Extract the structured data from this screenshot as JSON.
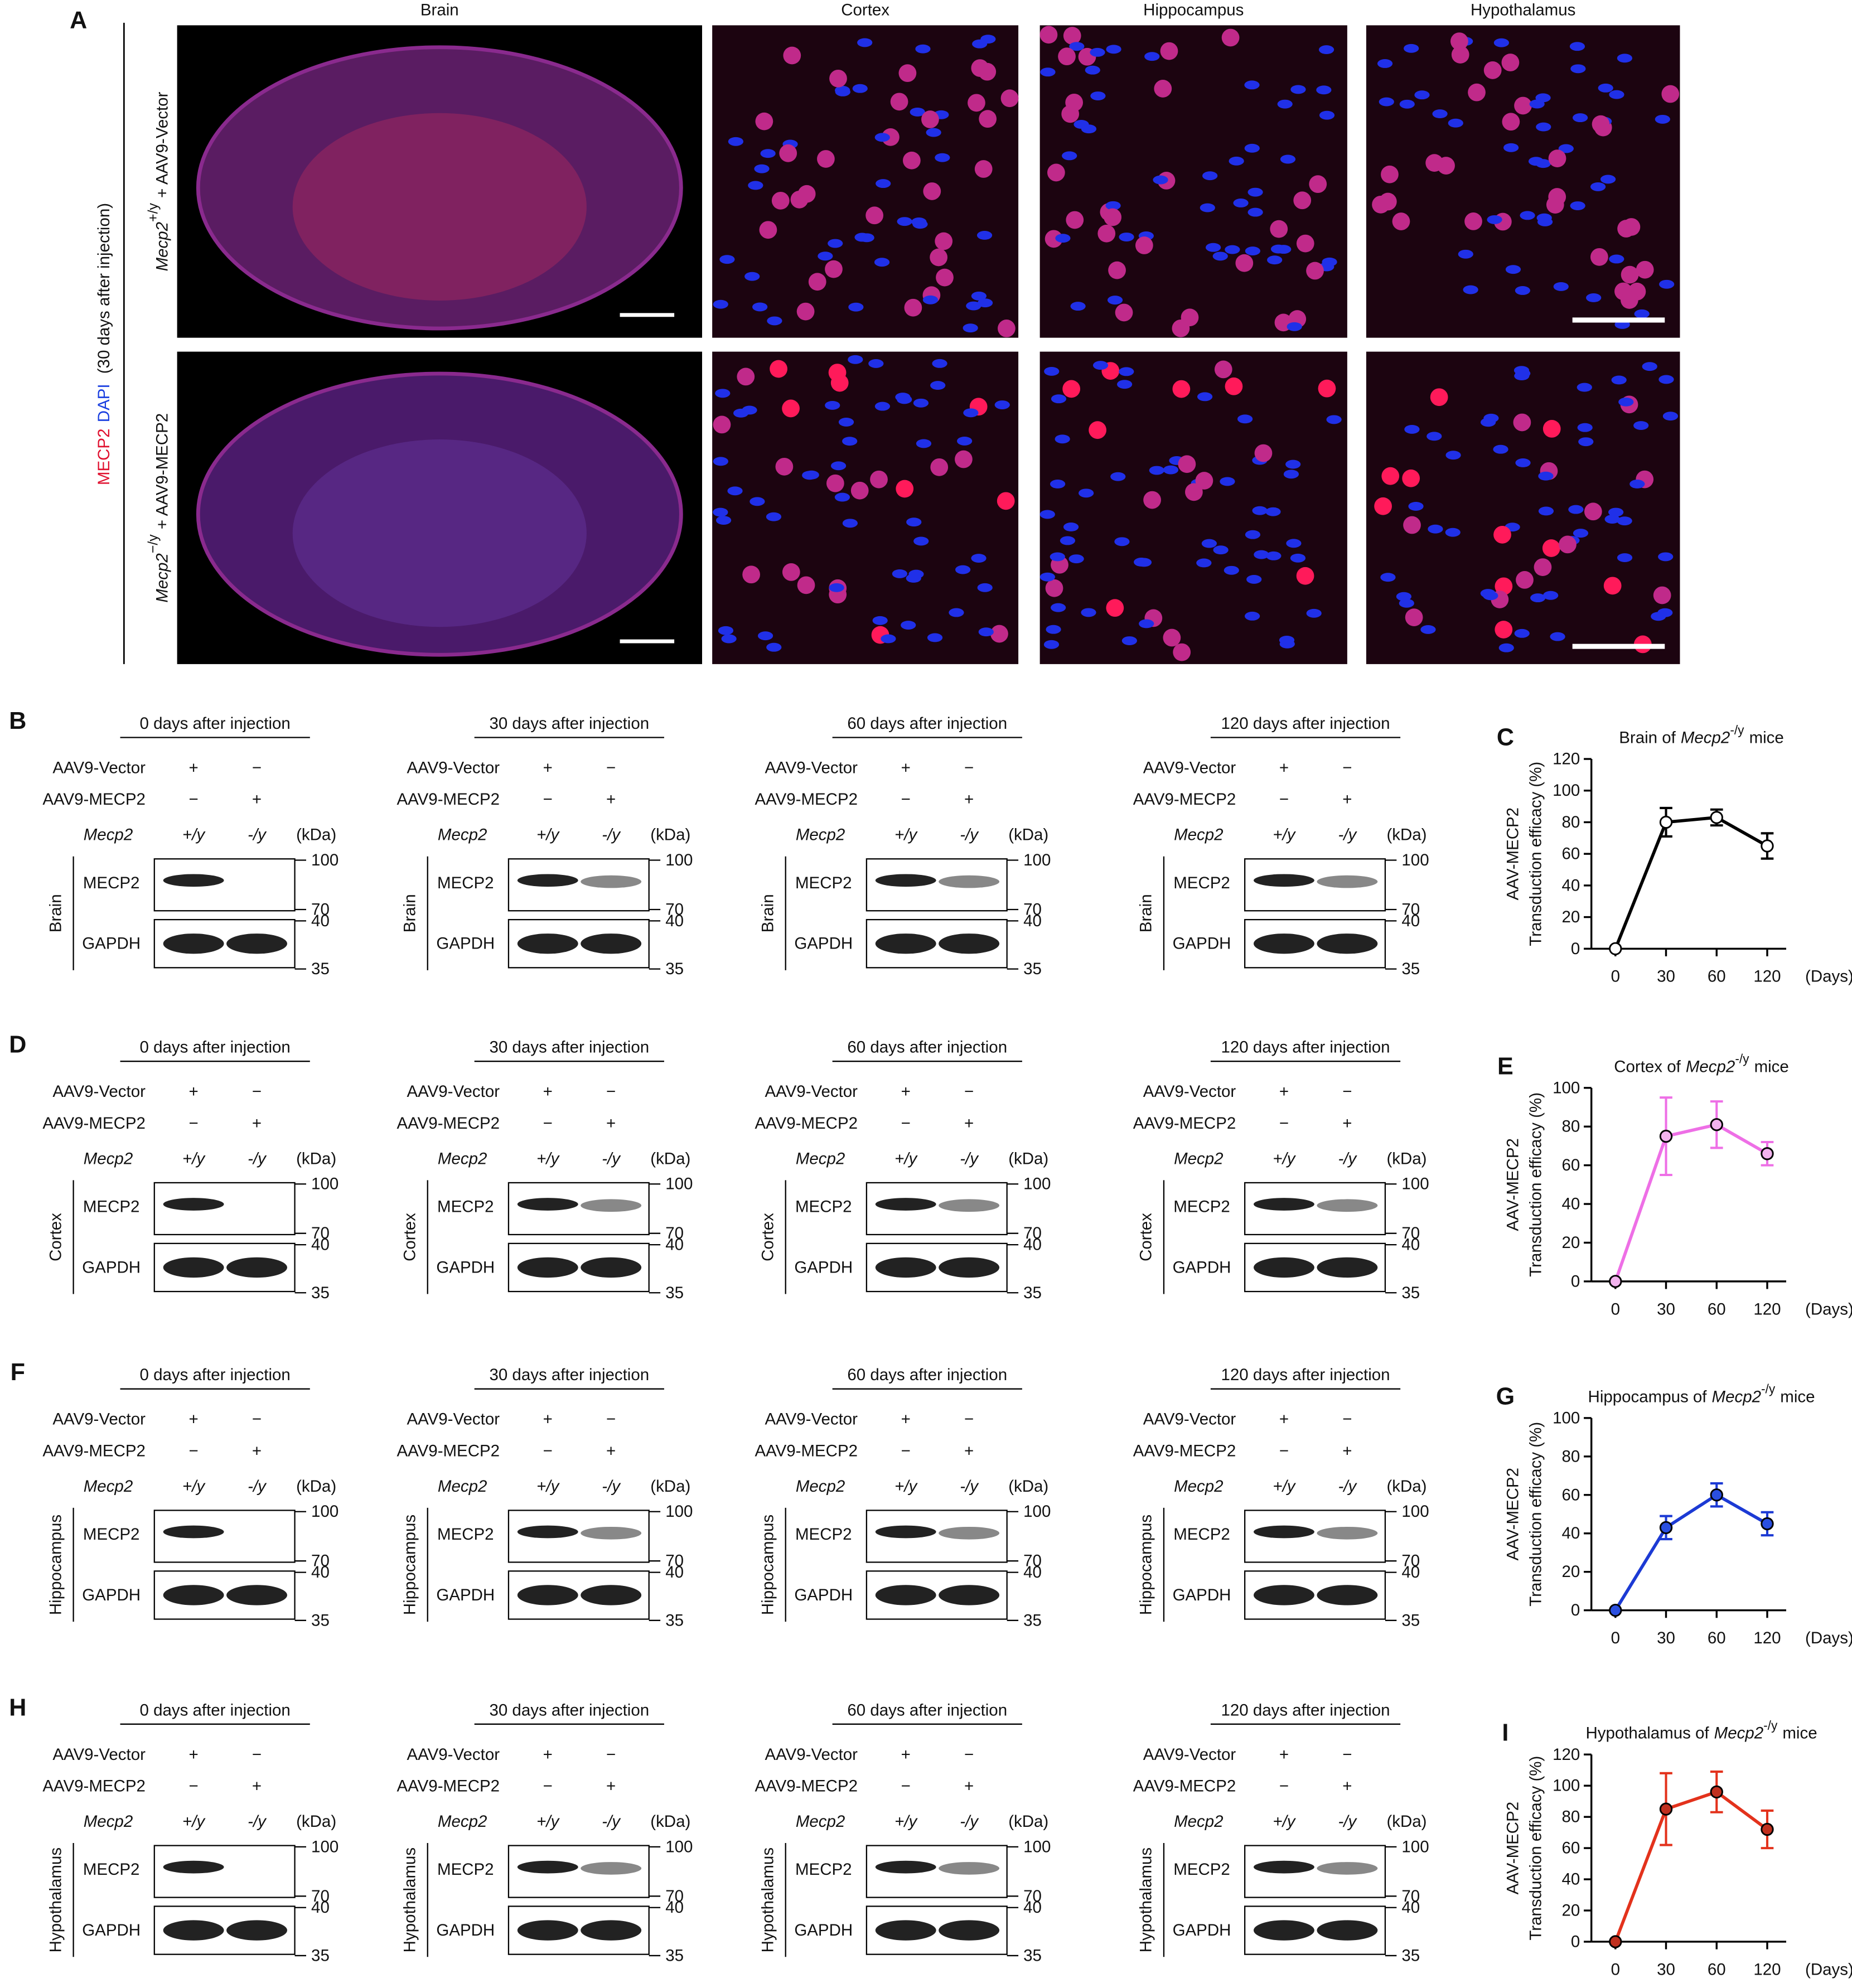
{
  "panel_a": {
    "label": "A",
    "columns": [
      "Brain",
      "Cortex",
      "Hippocampus",
      "Hypothalamus"
    ],
    "stain_1": "MECP2",
    "stain_2": "DAPI",
    "condition": "(30 days after injection)",
    "rows": [
      {
        "gene": "Mecp2",
        "genotype": "+/y",
        "treatment": "+ AAV9-Vector"
      },
      {
        "gene": "Mecp2",
        "genotype": "−/y",
        "treatment": "+ AAV9-MECP2"
      }
    ]
  },
  "blot_labels": {
    "vector": "AAV9-Vector",
    "mecp2_virus": "AAV9-MECP2",
    "plus": "+",
    "minus": "−",
    "gene": "Mecp2",
    "wt": "+/y",
    "ko": "-/y",
    "unit": "(kDa)",
    "target": "MECP2",
    "control": "GAPDH",
    "markers": [
      100,
      70,
      40,
      35
    ]
  },
  "blot_rows": [
    {
      "label": "B",
      "region": "Brain",
      "timepoints": [
        "0 days after injection",
        "30 days after injection",
        "60 days after injection",
        "120 days after injection"
      ]
    },
    {
      "label": "D",
      "region": "Cortex",
      "timepoints": [
        "0 days after injection",
        "30 days after injection",
        "60 days after injection",
        "120 days after injection"
      ]
    },
    {
      "label": "F",
      "region": "Hippocampus",
      "timepoints": [
        "0 days after injection",
        "30 days after injection",
        "60 days after injection",
        "120 days after injection"
      ]
    },
    {
      "label": "H",
      "region": "Hypothalamus",
      "timepoints": [
        "0 days after injection",
        "30 days after injection",
        "60 days after injection",
        "120 days after injection"
      ]
    }
  ],
  "chart_data": [
    {
      "type": "line",
      "label": "C",
      "title_prefix": "Brain of",
      "title_gene": "Mecp2",
      "title_superscript": "-/y",
      "title_suffix": "mice",
      "y_label": [
        "AAV-MECP2",
        "Transduction efficacy (%)"
      ],
      "x_label": "(Days)",
      "categories": [
        "0",
        "30",
        "60",
        "120"
      ],
      "values": [
        0,
        80,
        83,
        65
      ],
      "errors": [
        0,
        9,
        5,
        8
      ],
      "color": "#000000",
      "marker_color": "#ffffff",
      "ylim": [
        0,
        120
      ],
      "yticks": [
        0,
        20,
        40,
        60,
        80,
        100,
        120
      ]
    },
    {
      "type": "line",
      "label": "E",
      "title_prefix": "Cortex of",
      "title_gene": "Mecp2",
      "title_superscript": "-/y",
      "title_suffix": "mice",
      "y_label": [
        "AAV-MECP2",
        "Transduction efficacy (%)"
      ],
      "x_label": "(Days)",
      "categories": [
        "0",
        "30",
        "60",
        "120"
      ],
      "values": [
        0,
        75,
        81,
        66
      ],
      "errors": [
        0,
        20,
        12,
        6
      ],
      "color": "#ee6fe6",
      "marker_color": "#f2b3ee",
      "ylim": [
        0,
        100
      ],
      "yticks": [
        0,
        20,
        40,
        60,
        80,
        100
      ]
    },
    {
      "type": "line",
      "label": "G",
      "title_prefix": "Hippocampus of",
      "title_gene": "Mecp2",
      "title_superscript": "-/y",
      "title_suffix": "mice",
      "y_label": [
        "AAV-MECP2",
        "Transduction efficacy (%)"
      ],
      "x_label": "(Days)",
      "categories": [
        "0",
        "30",
        "60",
        "120"
      ],
      "values": [
        0,
        43,
        60,
        45
      ],
      "errors": [
        0,
        6,
        6,
        6
      ],
      "color": "#1c3ad4",
      "marker_color": "#2a4fe0",
      "ylim": [
        0,
        100
      ],
      "yticks": [
        0,
        20,
        40,
        60,
        80,
        100
      ]
    },
    {
      "type": "line",
      "label": "I",
      "title_prefix": "Hypothalamus of",
      "title_gene": "Mecp2",
      "title_superscript": "-/y",
      "title_suffix": "mice",
      "y_label": [
        "AAV-MECP2",
        "Transduction efficacy (%)"
      ],
      "x_label": "(Days)",
      "categories": [
        "0",
        "30",
        "60",
        "120"
      ],
      "values": [
        0,
        85,
        96,
        72
      ],
      "errors": [
        0,
        23,
        13,
        12
      ],
      "color": "#e3321c",
      "marker_color": "#c0301f",
      "ylim": [
        0,
        120
      ],
      "yticks": [
        0,
        20,
        40,
        60,
        80,
        100,
        120
      ]
    }
  ]
}
